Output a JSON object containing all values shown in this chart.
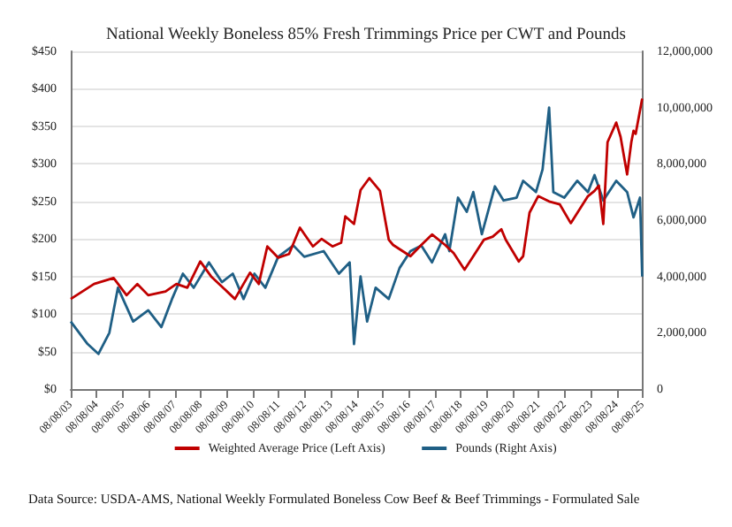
{
  "chart_data": {
    "type": "line",
    "title": "National Weekly Boneless 85% Fresh Trimmings Price per CWT and Pounds",
    "annotations": [
      "Data Source: USDA-AMS, National Weekly Formulated Boneless Cow Beef & Beef Trimmings - Formulated Sale"
    ],
    "xlim": [
      "2003-08-08",
      "2025-08-08"
    ],
    "xticks": [
      {
        "value": "2003-08-08",
        "label": "08/08/03"
      },
      {
        "value": "2004-08-08",
        "label": "08/08/04"
      },
      {
        "value": "2005-08-08",
        "label": "08/08/05"
      },
      {
        "value": "2006-08-08",
        "label": "08/08/06"
      },
      {
        "value": "2007-08-08",
        "label": "08/08/07"
      },
      {
        "value": "2008-08-08",
        "label": "08/08/08"
      },
      {
        "value": "2009-08-08",
        "label": "08/08/09"
      },
      {
        "value": "2010-08-08",
        "label": "08/08/10"
      },
      {
        "value": "2011-08-08",
        "label": "08/08/11"
      },
      {
        "value": "2012-08-08",
        "label": "08/08/12"
      },
      {
        "value": "2013-08-08",
        "label": "08/08/13"
      },
      {
        "value": "2014-08-08",
        "label": "08/08/14"
      },
      {
        "value": "2015-08-08",
        "label": "08/08/15"
      },
      {
        "value": "2016-08-08",
        "label": "08/08/16"
      },
      {
        "value": "2017-08-08",
        "label": "08/08/17"
      },
      {
        "value": "2018-08-08",
        "label": "08/08/18"
      },
      {
        "value": "2019-08-08",
        "label": "08/08/19"
      },
      {
        "value": "2020-08-08",
        "label": "08/08/20"
      },
      {
        "value": "2021-08-08",
        "label": "08/08/21"
      },
      {
        "value": "2022-08-08",
        "label": "08/08/22"
      },
      {
        "value": "2023-08-08",
        "label": "08/08/23"
      },
      {
        "value": "2024-08-08",
        "label": "08/08/24"
      },
      {
        "value": "2025-08-08",
        "label": "08/08/25"
      }
    ],
    "ylim": [
      0,
      450
    ],
    "yticks": [
      {
        "value": 0,
        "label": "$0"
      },
      {
        "value": 50,
        "label": "$50"
      },
      {
        "value": 100,
        "label": "$100"
      },
      {
        "value": 150,
        "label": "$150"
      },
      {
        "value": 200,
        "label": "$200"
      },
      {
        "value": 250,
        "label": "$250"
      },
      {
        "value": 300,
        "label": "$300"
      },
      {
        "value": 350,
        "label": "$350"
      },
      {
        "value": 400,
        "label": "$400"
      },
      {
        "value": 450,
        "label": "$450"
      }
    ],
    "y2lim": [
      0,
      12000000
    ],
    "y2ticks": [
      0,
      {
        "value": 2000000,
        "label": "2,000,000"
      },
      {
        "value": 4000000,
        "label": "4,000,000"
      },
      {
        "value": 6000000,
        "label": "6,000,000"
      },
      {
        "value": 8000000,
        "label": "8,000,000"
      },
      {
        "value": 10000000,
        "label": "10,000,000"
      },
      {
        "value": 12000000,
        "label": "12,000,000"
      }
    ],
    "grid": "y",
    "legend": "bottom",
    "marker": "none",
    "line_style": "solid",
    "series": [
      {
        "name": "Pounds (Right Axis)",
        "color": "#1f5f85",
        "axis": "y2",
        "x": [
          "2003-08-08",
          "2004-04",
          "2004-09",
          "2005-02",
          "2005-06",
          "2006-01",
          "2006-08",
          "2007-02",
          "2007-07",
          "2007-12",
          "2008-05",
          "2008-12",
          "2009-06",
          "2009-11",
          "2010-04",
          "2010-09",
          "2011-02",
          "2011-08",
          "2012-03",
          "2012-08",
          "2013-05",
          "2013-12",
          "2014-05",
          "2014-07",
          "2014-10",
          "2015-01",
          "2015-05",
          "2015-11",
          "2016-04",
          "2016-09",
          "2017-02",
          "2017-07",
          "2018-01",
          "2018-03",
          "2018-07",
          "2018-11",
          "2019-02",
          "2019-06",
          "2019-12",
          "2020-04",
          "2020-10",
          "2021-01",
          "2021-07",
          "2021-10",
          "2022-01",
          "2022-03",
          "2022-08",
          "2023-02",
          "2023-07",
          "2023-10",
          "2024-02",
          "2024-08",
          "2025-01",
          "2025-04",
          "2025-07",
          "2025-08-01"
        ],
        "values": [
          2400000,
          1600000,
          1250000,
          2000000,
          3600000,
          2400000,
          2800000,
          2200000,
          3200000,
          4100000,
          3600000,
          4500000,
          3800000,
          4100000,
          3200000,
          4100000,
          3600000,
          4700000,
          5100000,
          4700000,
          4900000,
          4100000,
          4500000,
          1600000,
          4000000,
          2400000,
          3600000,
          3200000,
          4300000,
          4900000,
          5100000,
          4500000,
          5500000,
          4900000,
          6800000,
          6300000,
          7000000,
          5500000,
          7200000,
          6700000,
          6800000,
          7400000,
          7000000,
          7800000,
          10000000,
          7000000,
          6800000,
          7400000,
          7000000,
          7600000,
          6700000,
          7400000,
          7000000,
          6100000,
          6800000,
          4000000
        ]
      },
      {
        "name": "Weighted Average Price (Left Axis)",
        "color": "#c00000",
        "x": [
          "2003-08-08",
          "2004-07",
          "2005-04",
          "2005-10",
          "2006-03",
          "2006-08",
          "2007-04",
          "2007-09",
          "2008-02",
          "2008-08",
          "2009-01",
          "2009-12",
          "2010-03",
          "2010-07",
          "2010-11",
          "2011-03",
          "2011-08",
          "2012-01",
          "2012-06",
          "2012-12",
          "2013-04",
          "2013-09",
          "2014-01",
          "2014-03",
          "2014-07",
          "2014-10",
          "2015-02",
          "2015-07",
          "2015-11",
          "2016-01",
          "2016-09",
          "2017-02",
          "2017-07",
          "2018-01",
          "2018-05",
          "2018-10",
          "2019-02",
          "2019-07",
          "2019-11",
          "2020-03",
          "2020-05",
          "2020-11",
          "2021-01",
          "2021-04",
          "2021-08",
          "2022-01",
          "2022-06",
          "2022-11",
          "2023-07",
          "2023-10",
          "2023-12",
          "2024-02",
          "2024-04",
          "2024-08",
          "2024-10",
          "2025-01",
          "2025-03",
          "2025-04",
          "2025-05",
          "2025-08-01"
        ],
        "values": [
          120,
          140,
          148,
          125,
          140,
          125,
          130,
          140,
          135,
          170,
          150,
          120,
          135,
          155,
          140,
          190,
          175,
          180,
          215,
          190,
          200,
          190,
          195,
          230,
          220,
          265,
          281,
          264,
          199,
          192,
          177,
          192,
          206,
          192,
          181,
          159,
          177,
          199,
          203,
          213,
          199,
          170,
          177,
          235,
          257,
          250,
          246,
          221,
          257,
          264,
          271,
          220,
          329,
          355,
          336,
          286,
          329,
          344,
          340,
          387
        ]
      }
    ]
  }
}
